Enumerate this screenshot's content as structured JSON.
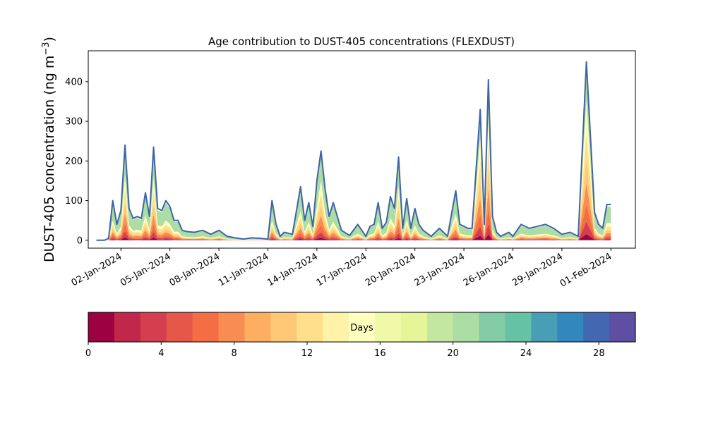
{
  "chart_data": {
    "type": "area",
    "title": "Age contribution to DUST-405 concentrations (FLEXDUST)",
    "ylabel_main": "DUST-405 concentration (ng m",
    "ylabel_sup": "−3",
    "ylabel_close": ")",
    "xlabel": "",
    "x_range": [
      "2023-12-31T00:00",
      "2024-02-02T12:00"
    ],
    "ylim": [
      -20,
      478
    ],
    "yticks": [
      0,
      100,
      200,
      300,
      400
    ],
    "xticks": [
      {
        "date": "2024-01-02",
        "label": "02-Jan-2024"
      },
      {
        "date": "2024-01-05",
        "label": "05-Jan-2024"
      },
      {
        "date": "2024-01-08",
        "label": "08-Jan-2024"
      },
      {
        "date": "2024-01-11",
        "label": "11-Jan-2024"
      },
      {
        "date": "2024-01-14",
        "label": "14-Jan-2024"
      },
      {
        "date": "2024-01-17",
        "label": "17-Jan-2024"
      },
      {
        "date": "2024-01-20",
        "label": "20-Jan-2024"
      },
      {
        "date": "2024-01-23",
        "label": "23-Jan-2024"
      },
      {
        "date": "2024-01-26",
        "label": "26-Jan-2024"
      },
      {
        "date": "2024-01-29",
        "label": "29-Jan-2024"
      },
      {
        "date": "2024-02-01",
        "label": "01-Feb-2024"
      }
    ],
    "total_concentration": {
      "x": [
        "2023-12-31T12:00",
        "2024-01-01T00:00",
        "2024-01-01T06:00",
        "2024-01-01T12:00",
        "2024-01-01T18:00",
        "2024-01-02T00:00",
        "2024-01-02T06:00",
        "2024-01-02T12:00",
        "2024-01-02T18:00",
        "2024-01-03T00:00",
        "2024-01-03T06:00",
        "2024-01-03T12:00",
        "2024-01-03T18:00",
        "2024-01-04T00:00",
        "2024-01-04T06:00",
        "2024-01-04T12:00",
        "2024-01-04T18:00",
        "2024-01-05T00:00",
        "2024-01-05T06:00",
        "2024-01-05T12:00",
        "2024-01-05T18:00",
        "2024-01-06T00:00",
        "2024-01-06T12:00",
        "2024-01-07T00:00",
        "2024-01-07T12:00",
        "2024-01-08T00:00",
        "2024-01-08T12:00",
        "2024-01-09T00:00",
        "2024-01-09T12:00",
        "2024-01-10T00:00",
        "2024-01-10T12:00",
        "2024-01-11T00:00",
        "2024-01-11T06:00",
        "2024-01-11T12:00",
        "2024-01-11T18:00",
        "2024-01-12T00:00",
        "2024-01-12T12:00",
        "2024-01-13T00:00",
        "2024-01-13T06:00",
        "2024-01-13T12:00",
        "2024-01-13T18:00",
        "2024-01-14T00:00",
        "2024-01-14T06:00",
        "2024-01-14T12:00",
        "2024-01-14T18:00",
        "2024-01-15T00:00",
        "2024-01-15T12:00",
        "2024-01-16T00:00",
        "2024-01-16T12:00",
        "2024-01-17T00:00",
        "2024-01-17T06:00",
        "2024-01-17T12:00",
        "2024-01-17T18:00",
        "2024-01-18T00:00",
        "2024-01-18T06:00",
        "2024-01-18T12:00",
        "2024-01-18T18:00",
        "2024-01-19T00:00",
        "2024-01-19T06:00",
        "2024-01-19T12:00",
        "2024-01-19T18:00",
        "2024-01-20T00:00",
        "2024-01-20T06:00",
        "2024-01-20T12:00",
        "2024-01-21T00:00",
        "2024-01-21T12:00",
        "2024-01-22T00:00",
        "2024-01-22T12:00",
        "2024-01-22T18:00",
        "2024-01-23T00:00",
        "2024-01-23T06:00",
        "2024-01-23T12:00",
        "2024-01-24T00:00",
        "2024-01-24T06:00",
        "2024-01-24T12:00",
        "2024-01-24T18:00",
        "2024-01-25T00:00",
        "2024-01-25T06:00",
        "2024-01-25T12:00",
        "2024-01-25T18:00",
        "2024-01-26T00:00",
        "2024-01-26T12:00",
        "2024-01-27T00:00",
        "2024-01-27T12:00",
        "2024-01-28T00:00",
        "2024-01-28T12:00",
        "2024-01-29T00:00",
        "2024-01-29T12:00",
        "2024-01-30T00:00",
        "2024-01-30T12:00",
        "2024-01-31T00:00",
        "2024-01-31T06:00",
        "2024-01-31T12:00",
        "2024-01-31T18:00",
        "2024-02-01T00:00"
      ],
      "y": [
        0,
        0,
        5,
        100,
        40,
        75,
        240,
        80,
        55,
        60,
        55,
        120,
        60,
        235,
        80,
        75,
        100,
        85,
        50,
        50,
        25,
        22,
        20,
        25,
        15,
        25,
        10,
        6,
        3,
        6,
        5,
        3,
        100,
        40,
        10,
        20,
        15,
        135,
        50,
        95,
        35,
        150,
        225,
        130,
        60,
        95,
        25,
        12,
        40,
        10,
        35,
        40,
        95,
        30,
        45,
        110,
        80,
        210,
        30,
        105,
        30,
        80,
        40,
        25,
        10,
        30,
        10,
        125,
        40,
        35,
        30,
        30,
        330,
        40,
        405,
        60,
        20,
        10,
        15,
        20,
        10,
        40,
        30,
        35,
        40,
        30,
        15,
        20,
        10,
        450,
        70,
        40,
        30,
        90,
        90
      ]
    },
    "colorbar": {
      "label": "Days",
      "range": [
        0,
        30
      ],
      "ticks": [
        0,
        4,
        8,
        12,
        16,
        20,
        24,
        28
      ],
      "colors": [
        "#9e0142",
        "#c0274a",
        "#d53e4f",
        "#e55748",
        "#f46d43",
        "#f88d51",
        "#fdae61",
        "#fec877",
        "#fee08b",
        "#fff3a8",
        "#ffffbf",
        "#f0f9a8",
        "#e6f598",
        "#c3e7a0",
        "#abdda4",
        "#82cba5",
        "#66c2a5",
        "#489fb5",
        "#3288bd",
        "#4467b1",
        "#5e4fa2"
      ]
    },
    "line_color": "#4064a8"
  }
}
